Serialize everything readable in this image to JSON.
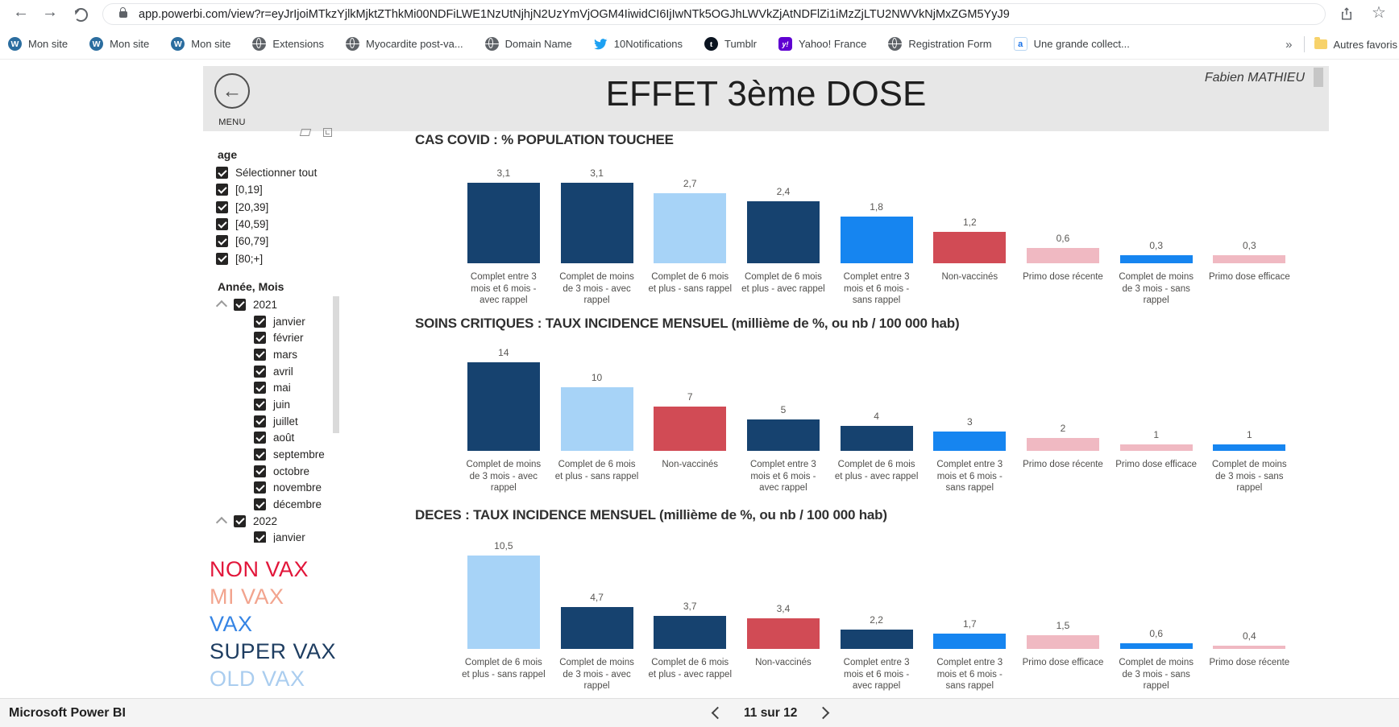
{
  "browser": {
    "url": "app.powerbi.com/view?r=eyJrIjoiMTkzYjlkMjktZThkMi00NDFiLWE1NzUtNjhjN2UzYmVjOGM4IiwidCI6IjIwNTk5OGJhLWVkZjAtNDFlZi1iMzZjLTU2NWVkNjMxZGM5YyJ9",
    "overflow_chevron": "»",
    "other_favorites": "Autres favoris",
    "bookmarks": [
      {
        "label": "Mon site",
        "icon": "wordpress-icon"
      },
      {
        "label": "Mon site",
        "icon": "wordpress-icon"
      },
      {
        "label": "Mon site",
        "icon": "wordpress-icon"
      },
      {
        "label": "Extensions",
        "icon": "globe-icon"
      },
      {
        "label": "Myocardite post-va...",
        "icon": "globe-icon"
      },
      {
        "label": "Domain Name",
        "icon": "globe-icon"
      },
      {
        "label": "10Notifications",
        "icon": "twitter-icon"
      },
      {
        "label": "Tumblr",
        "icon": "tumblr-icon"
      },
      {
        "label": "Yahoo! France",
        "icon": "yahoo-icon"
      },
      {
        "label": "Registration Form",
        "icon": "globe-icon"
      },
      {
        "label": "Une grande collect...",
        "icon": "doc-icon"
      }
    ]
  },
  "report": {
    "menu_label": "MENU",
    "title": "EFFET 3ème DOSE",
    "author": "Fabien MATHIEU"
  },
  "filters": {
    "age": {
      "title": "age",
      "options": [
        "Sélectionner tout",
        "[0,19]",
        "[20,39]",
        "[40,59]",
        "[60,79]",
        "[80;+]"
      ]
    },
    "date": {
      "title": "Année, Mois",
      "groups": [
        {
          "year": "2021",
          "months": [
            "janvier",
            "février",
            "mars",
            "avril",
            "mai",
            "juin",
            "juillet",
            "août",
            "septembre",
            "octobre",
            "novembre",
            "décembre"
          ]
        },
        {
          "year": "2022",
          "months": [
            "janvier"
          ]
        }
      ]
    }
  },
  "legend": [
    {
      "label": "NON VAX",
      "color": "#E2163A"
    },
    {
      "label": "MI VAX",
      "color": "#F2A48E"
    },
    {
      "label": "VAX",
      "color": "#3584E4"
    },
    {
      "label": "SUPER VAX",
      "color": "#1E3D61"
    },
    {
      "label": "OLD VAX",
      "color": "#AACDEF"
    }
  ],
  "colors": {
    "navy": "#16426F",
    "light_blue": "#A7D3F7",
    "bright_blue": "#1685F0",
    "red": "#D14B55",
    "pink": "#F0B9C2"
  },
  "chart_data": [
    {
      "type": "bar",
      "title": "CAS COVID : % POPULATION TOUCHEE",
      "ylim": [
        0,
        3.5
      ],
      "categories": [
        "Complet entre 3 mois et 6 mois - avec rappel",
        "Complet de moins de 3 mois - avec rappel",
        "Complet de 6 mois et plus - sans rappel",
        "Complet de 6 mois et plus - avec rappel",
        "Complet entre 3 mois et 6 mois - sans rappel",
        "Non-vaccinés",
        "Primo dose récente",
        "Complet de moins de 3 mois - sans rappel",
        "Primo dose efficace"
      ],
      "values": [
        3.1,
        3.1,
        2.7,
        2.4,
        1.8,
        1.2,
        0.6,
        0.3,
        0.3
      ],
      "value_labels": [
        "3,1",
        "3,1",
        "2,7",
        "2,4",
        "1,8",
        "1,2",
        "0,6",
        "0,3",
        "0,3"
      ],
      "bar_colors": [
        "navy",
        "navy",
        "light_blue",
        "navy",
        "bright_blue",
        "red",
        "pink",
        "bright_blue",
        "pink"
      ]
    },
    {
      "type": "bar",
      "title": "SOINS CRITIQUES : TAUX INCIDENCE MENSUEL (millième de %, ou nb / 100 000 hab)",
      "ylim": [
        0,
        15
      ],
      "categories": [
        "Complet de moins de 3 mois - avec rappel",
        "Complet de 6 mois et plus - sans rappel",
        "Non-vaccinés",
        "Complet entre 3 mois et 6 mois - avec rappel",
        "Complet de 6 mois et plus - avec rappel",
        "Complet entre 3 mois et 6 mois - sans rappel",
        "Primo dose récente",
        "Primo dose efficace",
        "Complet de moins de 3 mois - sans rappel"
      ],
      "values": [
        14,
        10,
        7,
        5,
        4,
        3,
        2,
        1,
        1
      ],
      "value_labels": [
        "14",
        "10",
        "7",
        "5",
        "4",
        "3",
        "2",
        "1",
        "1"
      ],
      "bar_colors": [
        "navy",
        "light_blue",
        "red",
        "navy",
        "navy",
        "bright_blue",
        "pink",
        "pink",
        "bright_blue"
      ]
    },
    {
      "type": "bar",
      "title": "DECES : TAUX INCIDENCE MENSUEL (millième de %, ou nb / 100 000 hab)",
      "ylim": [
        0,
        11
      ],
      "categories": [
        "Complet de 6 mois et plus - sans rappel",
        "Complet de moins de 3 mois - avec rappel",
        "Complet de 6 mois et plus - avec rappel",
        "Non-vaccinés",
        "Complet entre 3 mois et 6 mois - avec rappel",
        "Complet entre 3 mois et 6 mois - sans rappel",
        "Primo dose efficace",
        "Complet de moins de 3 mois - sans rappel",
        "Primo dose récente"
      ],
      "values": [
        10.5,
        4.7,
        3.7,
        3.4,
        2.2,
        1.7,
        1.5,
        0.6,
        0.4
      ],
      "value_labels": [
        "10,5",
        "4,7",
        "3,7",
        "3,4",
        "2,2",
        "1,7",
        "1,5",
        "0,6",
        "0,4"
      ],
      "bar_colors": [
        "light_blue",
        "navy",
        "navy",
        "red",
        "navy",
        "bright_blue",
        "pink",
        "bright_blue",
        "pink"
      ]
    }
  ],
  "footer": {
    "brand": "Microsoft Power BI",
    "pagination": "11 sur 12"
  }
}
